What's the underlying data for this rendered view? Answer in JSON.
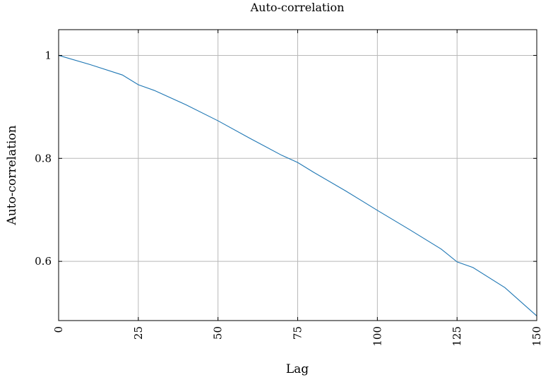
{
  "chart_data": {
    "type": "line",
    "title": "Auto-correlation",
    "xlabel": "Lag",
    "ylabel": "Auto-correlation",
    "xlim": [
      0,
      150
    ],
    "ylim": [
      0.485,
      1.05
    ],
    "grid": true,
    "x_ticks": [
      0,
      25,
      50,
      75,
      100,
      125,
      150
    ],
    "y_ticks": [
      0.6,
      0.8,
      1
    ],
    "x_tick_labels": [
      "0",
      "25",
      "50",
      "75",
      "100",
      "125",
      "150"
    ],
    "y_tick_labels": [
      "0.6",
      "0.8",
      "1"
    ],
    "series_color": "#1f77b4",
    "series": [
      {
        "x": [
          0,
          10,
          20,
          25,
          30,
          40,
          50,
          60,
          70,
          75,
          80,
          90,
          100,
          110,
          120,
          125,
          130,
          140,
          150
        ],
        "values": [
          1.0,
          0.982,
          0.962,
          0.943,
          0.932,
          0.904,
          0.873,
          0.839,
          0.806,
          0.792,
          0.773,
          0.737,
          0.699,
          0.662,
          0.624,
          0.599,
          0.588,
          0.549,
          0.494
        ]
      }
    ]
  }
}
